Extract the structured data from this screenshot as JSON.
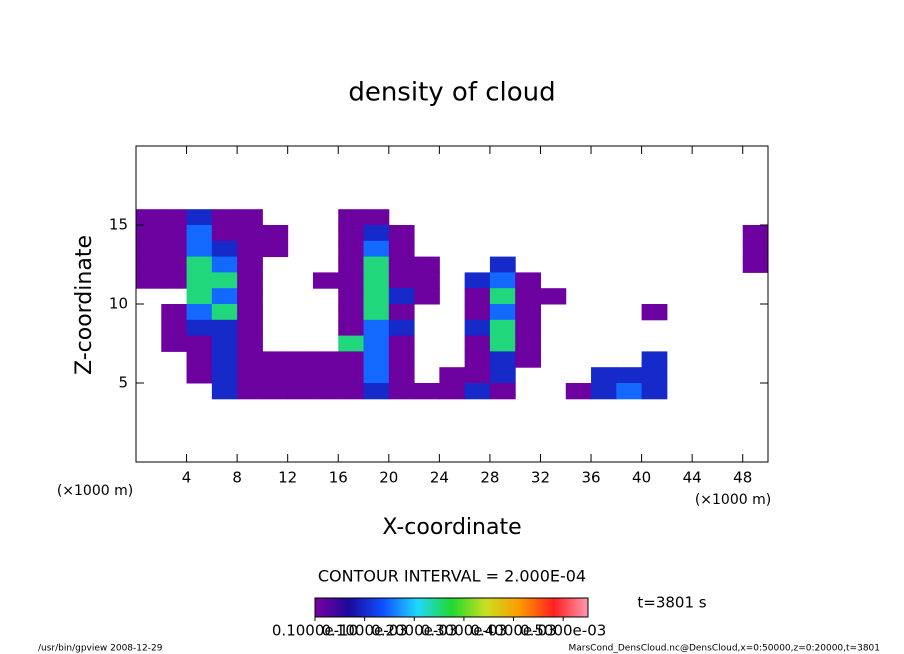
{
  "chart_data": {
    "type": "heatmap",
    "title": "density of cloud",
    "x_label": "X-coordinate",
    "y_label": "Z-coordinate",
    "x_unit": "(×1000 m)",
    "y_unit": "(×1000 m)",
    "contour_note": "CONTOUR INTERVAL = 2.000E-04",
    "time_label": "t=3801 s",
    "footer_left": "/usr/bin/gpview  2008-12-29",
    "footer_right": "MarsCond_DensCloud.nc@DensCloud,x=0:50000,z=0:20000,t=3801",
    "xlim": [
      0,
      50
    ],
    "ylim": [
      0,
      20
    ],
    "xticks": [
      4,
      8,
      12,
      16,
      20,
      24,
      28,
      32,
      36,
      40,
      44,
      48
    ],
    "yticks": [
      5,
      10,
      15
    ],
    "x": [
      1,
      3,
      5,
      7,
      9,
      11,
      13,
      15,
      17,
      19,
      21,
      23,
      25,
      27,
      29,
      31,
      33,
      35,
      37,
      39,
      41,
      43,
      45,
      47,
      49
    ],
    "y": [
      15.5,
      14.5,
      13.5,
      12.5,
      11.5,
      10.5,
      9.5,
      8.5,
      7.5,
      6.5,
      5.5,
      4.5
    ],
    "values": [
      [
        1e-05,
        1e-05,
        0.0001,
        1e-05,
        1e-05,
        null,
        null,
        null,
        1e-05,
        1e-05,
        null,
        null,
        null,
        null,
        null,
        null,
        null,
        null,
        null,
        null,
        null,
        null,
        null,
        null,
        null
      ],
      [
        1e-05,
        1e-05,
        0.00015,
        1e-05,
        1e-05,
        1e-05,
        null,
        null,
        1e-05,
        0.0001,
        1e-05,
        null,
        null,
        null,
        null,
        null,
        null,
        null,
        null,
        null,
        null,
        null,
        null,
        null,
        1e-05
      ],
      [
        1e-05,
        1e-05,
        0.00015,
        0.0001,
        1e-05,
        1e-05,
        null,
        null,
        1e-05,
        0.00015,
        1e-05,
        null,
        null,
        null,
        null,
        null,
        null,
        null,
        null,
        null,
        null,
        null,
        null,
        null,
        1e-05
      ],
      [
        1e-05,
        1e-05,
        0.00025,
        0.00015,
        1e-05,
        null,
        null,
        null,
        1e-05,
        0.00025,
        1e-05,
        1e-05,
        null,
        null,
        0.0001,
        null,
        null,
        null,
        null,
        null,
        null,
        null,
        null,
        null,
        1e-05
      ],
      [
        1e-05,
        1e-05,
        0.00025,
        0.00025,
        1e-05,
        null,
        null,
        1e-05,
        1e-05,
        0.00025,
        1e-05,
        1e-05,
        null,
        0.0001,
        0.00015,
        1e-05,
        null,
        null,
        null,
        null,
        null,
        null,
        null,
        null,
        null
      ],
      [
        null,
        null,
        0.00025,
        0.00015,
        1e-05,
        null,
        null,
        null,
        1e-05,
        0.00025,
        0.0001,
        1e-05,
        null,
        1e-05,
        0.00025,
        1e-05,
        1e-05,
        null,
        null,
        null,
        null,
        null,
        null,
        null,
        null
      ],
      [
        null,
        1e-05,
        0.00015,
        0.00025,
        1e-05,
        null,
        null,
        null,
        1e-05,
        0.00025,
        1e-05,
        null,
        null,
        1e-05,
        0.00015,
        1e-05,
        null,
        null,
        null,
        null,
        1e-05,
        null,
        null,
        null,
        null
      ],
      [
        null,
        1e-05,
        0.0001,
        0.0001,
        1e-05,
        null,
        null,
        null,
        1e-05,
        0.00015,
        0.0001,
        null,
        null,
        0.0001,
        0.00025,
        1e-05,
        null,
        null,
        null,
        null,
        null,
        null,
        null,
        null,
        null
      ],
      [
        null,
        1e-05,
        1e-05,
        0.0001,
        1e-05,
        null,
        null,
        null,
        0.00025,
        0.00015,
        1e-05,
        null,
        null,
        1e-05,
        0.00025,
        1e-05,
        null,
        null,
        null,
        null,
        null,
        null,
        null,
        null,
        null
      ],
      [
        null,
        null,
        1e-05,
        0.0001,
        1e-05,
        1e-05,
        1e-05,
        1e-05,
        1e-05,
        0.00015,
        1e-05,
        null,
        null,
        1e-05,
        0.0001,
        1e-05,
        null,
        null,
        null,
        null,
        0.0001,
        null,
        null,
        null,
        null
      ],
      [
        null,
        null,
        1e-05,
        0.0001,
        1e-05,
        1e-05,
        1e-05,
        1e-05,
        1e-05,
        0.00015,
        1e-05,
        null,
        1e-05,
        1e-05,
        0.0001,
        null,
        null,
        null,
        0.0001,
        0.0001,
        0.0001,
        null,
        null,
        null,
        null
      ],
      [
        null,
        null,
        null,
        0.0001,
        1e-05,
        1e-05,
        1e-05,
        1e-05,
        1e-05,
        0.0001,
        1e-05,
        1e-05,
        1e-05,
        0.0001,
        1e-05,
        null,
        null,
        1e-05,
        0.0001,
        0.00015,
        0.0001,
        null,
        null,
        null,
        null
      ]
    ],
    "clim": [
      0,
      0.00055
    ],
    "colors": [
      "#7a00a0",
      "#1a0a9a",
      "#1050ff",
      "#20d8ff",
      "#20d830",
      "#c8e020",
      "#ff9a00",
      "#ff2020",
      "#ff98b0"
    ],
    "cticks": [
      {
        "value": 1e-11,
        "label": "0.1000e-10"
      },
      {
        "value": 0.0001,
        "label": "0.1000e-03"
      },
      {
        "value": 0.0002,
        "label": "0.2000e-03"
      },
      {
        "value": 0.0003,
        "label": "0.3000e-03"
      },
      {
        "value": 0.0004,
        "label": "0.4000e-03"
      },
      {
        "value": 0.0005,
        "label": "0.5000e-03"
      }
    ]
  }
}
